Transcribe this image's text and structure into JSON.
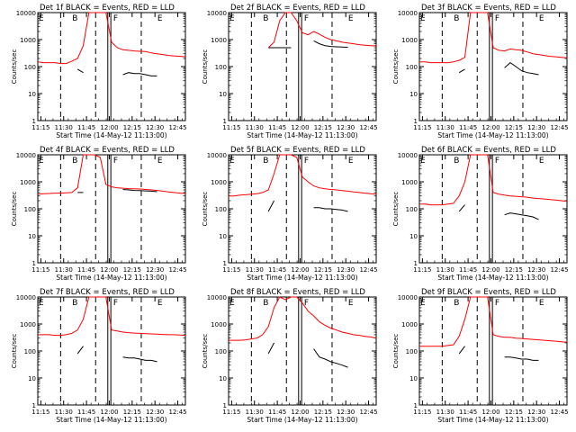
{
  "figure": {
    "common": {
      "type": "line",
      "ylabel": "Counts/sec",
      "xlabel": "Start Time (14-May-12 11:13:00)",
      "x_ticks": [
        "11:15",
        "11:30",
        "11:45",
        "12:00",
        "12:15",
        "12:30",
        "12:45"
      ],
      "y_ticks": [
        "1",
        "10",
        "100",
        "1000",
        "10000"
      ],
      "ylim": [
        1,
        10000
      ],
      "y_scale": "log",
      "xlim": [
        "11:13",
        "12:50"
      ],
      "marker_labels": [
        "E",
        "B",
        "F",
        "E"
      ],
      "series_colors": {
        "events": "#000000",
        "lld": "#ff0000"
      }
    },
    "chart_data": [
      {
        "title": "Det 1f BLACK = Events, RED = LLD",
        "series": [
          {
            "values": [
              0,
              0,
              0,
              0,
              0,
              0,
              0,
              80,
              60,
              0,
              0,
              0,
              0,
              0,
              0,
              50,
              60,
              55,
              55,
              50,
              45,
              45,
              0,
              0,
              0,
              0,
              0
            ]
          },
          {
            "values": [
              150,
              140,
              140,
              140,
              130,
              130,
              160,
              200,
              600,
              10000,
              10000,
              10000,
              10000,
              800,
              500,
              420,
              400,
              380,
              370,
              360,
              320,
              300,
              280,
              260,
              250,
              240,
              230
            ]
          }
        ]
      },
      {
        "title": "Det 2f BLACK = Events, RED = LLD",
        "series": [
          {
            "values": [
              0,
              0,
              0,
              0,
              0,
              0,
              0,
              500,
              500,
              500,
              500,
              500,
              0,
              0,
              0,
              900,
              700,
              600,
              560,
              540,
              530,
              520,
              0,
              0,
              0,
              0,
              0
            ]
          },
          {
            "values": [
              0,
              0,
              0,
              0,
              0,
              0,
              0,
              500,
              800,
              5000,
              10000,
              10000,
              5000,
              1800,
              1500,
              2000,
              1600,
              1200,
              1000,
              900,
              800,
              750,
              700,
              650,
              620,
              600,
              580
            ]
          }
        ]
      },
      {
        "title": "Det 3f BLACK = Events, RED = LLD",
        "series": [
          {
            "values": [
              0,
              0,
              0,
              0,
              0,
              0,
              0,
              60,
              80,
              0,
              0,
              0,
              0,
              0,
              0,
              90,
              140,
              100,
              70,
              60,
              55,
              50,
              0,
              0,
              0,
              0,
              0
            ]
          },
          {
            "values": [
              150,
              150,
              140,
              140,
              140,
              140,
              150,
              170,
              220,
              10000,
              10000,
              10000,
              10000,
              500,
              400,
              380,
              450,
              420,
              400,
              350,
              300,
              280,
              260,
              240,
              230,
              220,
              210
            ]
          }
        ]
      },
      {
        "title": "Det 4f BLACK = Events, RED = LLD",
        "series": [
          {
            "values": [
              0,
              0,
              0,
              0,
              0,
              0,
              0,
              400,
              400,
              0,
              0,
              0,
              0,
              0,
              0,
              520,
              500,
              480,
              470,
              460,
              450,
              430,
              0,
              0,
              0,
              0,
              0
            ]
          },
          {
            "values": [
              350,
              360,
              370,
              380,
              380,
              390,
              400,
              600,
              10000,
              10000,
              10000,
              8000,
              800,
              650,
              600,
              580,
              560,
              550,
              540,
              520,
              500,
              480,
              450,
              420,
              400,
              380,
              370
            ]
          }
        ]
      },
      {
        "title": "Det 5f BLACK = Events, RED = LLD",
        "series": [
          {
            "values": [
              0,
              0,
              0,
              0,
              0,
              0,
              0,
              80,
              200,
              0,
              0,
              0,
              0,
              0,
              0,
              110,
              110,
              100,
              100,
              95,
              90,
              80,
              0,
              0,
              0,
              0,
              0
            ]
          },
          {
            "values": [
              300,
              300,
              320,
              330,
              350,
              360,
              400,
              500,
              2000,
              10000,
              10000,
              10000,
              8000,
              1500,
              1000,
              700,
              600,
              550,
              520,
              500,
              470,
              450,
              420,
              400,
              380,
              360,
              350
            ]
          }
        ]
      },
      {
        "title": "Det 6f BLACK = Events, RED = LLD",
        "series": [
          {
            "values": [
              0,
              0,
              0,
              0,
              0,
              0,
              0,
              80,
              140,
              0,
              0,
              0,
              0,
              0,
              0,
              60,
              70,
              65,
              60,
              55,
              50,
              40,
              0,
              0,
              0,
              0,
              0
            ]
          },
          {
            "values": [
              150,
              150,
              140,
              140,
              140,
              150,
              160,
              300,
              1000,
              10000,
              10000,
              10000,
              10000,
              400,
              350,
              320,
              300,
              290,
              280,
              270,
              250,
              240,
              230,
              220,
              210,
              200,
              190
            ]
          }
        ]
      },
      {
        "title": "Det 7f BLACK = Events, RED = LLD",
        "series": [
          {
            "values": [
              0,
              0,
              0,
              0,
              0,
              0,
              0,
              80,
              150,
              0,
              0,
              0,
              0,
              0,
              0,
              60,
              55,
              55,
              50,
              45,
              45,
              40,
              0,
              0,
              0,
              0,
              0
            ]
          },
          {
            "values": [
              400,
              400,
              400,
              380,
              380,
              400,
              450,
              600,
              1500,
              10000,
              10000,
              10000,
              10000,
              600,
              550,
              500,
              480,
              460,
              450,
              440,
              430,
              420,
              410,
              400,
              400,
              390,
              380
            ]
          }
        ]
      },
      {
        "title": "Det 8f BLACK = Events, RED = LLD",
        "series": [
          {
            "values": [
              0,
              0,
              0,
              0,
              0,
              0,
              0,
              80,
              200,
              0,
              0,
              0,
              0,
              0,
              0,
              120,
              60,
              50,
              40,
              35,
              30,
              25,
              0,
              0,
              0,
              0,
              0
            ]
          },
          {
            "values": [
              250,
              250,
              250,
              260,
              280,
              300,
              400,
              800,
              4000,
              10000,
              8000,
              10000,
              10000,
              6000,
              3000,
              2000,
              1200,
              900,
              700,
              600,
              500,
              450,
              400,
              380,
              350,
              330,
              300
            ]
          }
        ]
      },
      {
        "title": "Det 9f BLACK = Events, RED = LLD",
        "series": [
          {
            "values": [
              0,
              0,
              0,
              0,
              0,
              0,
              0,
              80,
              150,
              0,
              0,
              0,
              0,
              0,
              0,
              60,
              60,
              55,
              50,
              50,
              45,
              45,
              0,
              0,
              0,
              0,
              0
            ]
          },
          {
            "values": [
              150,
              150,
              150,
              150,
              150,
              160,
              170,
              350,
              1500,
              10000,
              10000,
              10000,
              10000,
              400,
              350,
              320,
              320,
              300,
              290,
              280,
              270,
              260,
              250,
              240,
              230,
              220,
              210
            ]
          }
        ]
      }
    ]
  }
}
